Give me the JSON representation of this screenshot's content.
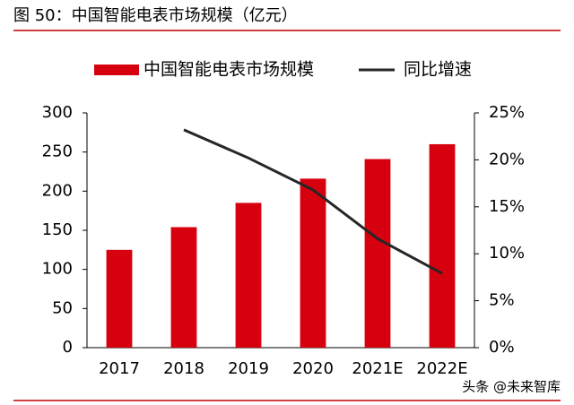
{
  "chart_data": {
    "type": "bar_line",
    "title": "图 50：中国智能电表市场规模（亿元）",
    "watermark": "头条 @未来智库",
    "categories": [
      "2017",
      "2018",
      "2019",
      "2020",
      "2021E",
      "2022E"
    ],
    "series": [
      {
        "name": "中国智能电表市场规模",
        "type": "bar",
        "color": "#d7000f",
        "values": [
          125,
          154,
          185,
          216,
          241,
          260
        ]
      },
      {
        "name": "同比增速",
        "type": "line",
        "axis": "y2",
        "color": "#262626",
        "values": [
          null,
          23.2,
          20.2,
          16.8,
          11.6,
          7.9
        ]
      }
    ],
    "ylim": [
      0,
      300
    ],
    "yticks": [
      0,
      50,
      100,
      150,
      200,
      250,
      300
    ],
    "y2lim": [
      0,
      25
    ],
    "y2ticks": [
      {
        "value": 0,
        "label": "0%"
      },
      {
        "value": 5,
        "label": "5%"
      },
      {
        "value": 10,
        "label": "10%"
      },
      {
        "value": 15,
        "label": "15%"
      },
      {
        "value": 20,
        "label": "20%"
      },
      {
        "value": 25,
        "label": "25%"
      }
    ]
  }
}
